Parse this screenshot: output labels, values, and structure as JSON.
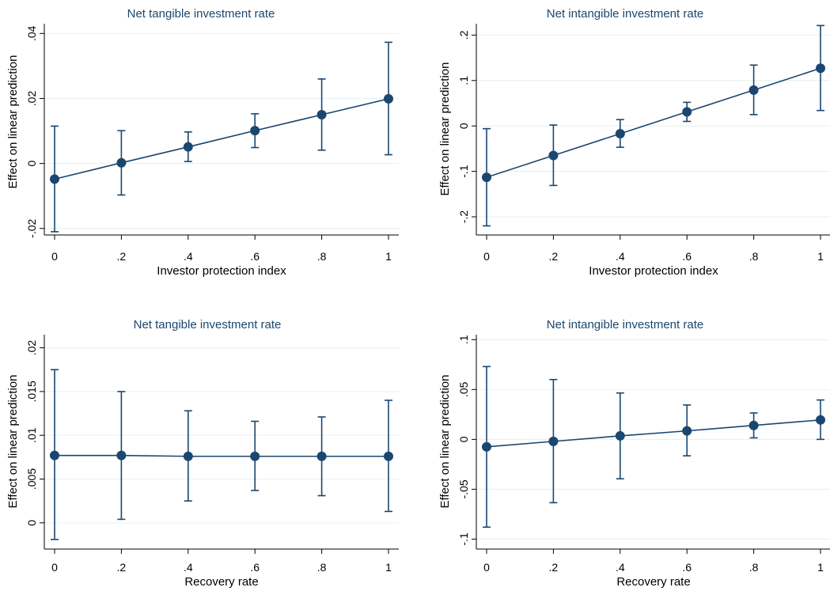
{
  "colors": {
    "series": "#1a476f",
    "grid": "#eaf2f3",
    "background": "#ffffff"
  },
  "chart_data": [
    {
      "type": "line",
      "title": "Net tangible investment rate",
      "xlabel": "Investor protection index",
      "ylabel": "Effect on linear prediction",
      "x": [
        0,
        0.2,
        0.4,
        0.6,
        0.8,
        1
      ],
      "x_tick_labels": [
        "0",
        ".2",
        ".4",
        ".6",
        ".8",
        "1"
      ],
      "y_ticks": [
        -0.02,
        0,
        0.02,
        0.04
      ],
      "y_tick_labels": [
        "-.02",
        "0",
        ".02",
        ".04"
      ],
      "xlim": [
        0,
        1
      ],
      "ylim": [
        -0.022,
        0.043
      ],
      "grid": true,
      "series": [
        {
          "values": [
            -0.0048,
            0.0002,
            0.0051,
            0.0101,
            0.015,
            0.0199
          ],
          "ci_low": [
            -0.021,
            -0.0097,
            0.0006,
            0.0049,
            0.0041,
            0.0027
          ],
          "ci_high": [
            0.0115,
            0.0101,
            0.0097,
            0.0153,
            0.026,
            0.0373
          ]
        }
      ]
    },
    {
      "type": "line",
      "title": "Net intangible investment rate",
      "xlabel": "Investor protection index",
      "ylabel": "Effect on linear prediction",
      "x": [
        0,
        0.2,
        0.4,
        0.6,
        0.8,
        1
      ],
      "x_tick_labels": [
        "0",
        ".2",
        ".4",
        ".6",
        ".8",
        "1"
      ],
      "y_ticks": [
        -0.2,
        -0.1,
        0,
        0.1,
        0.2
      ],
      "y_tick_labels": [
        "-.2",
        "-.1",
        "0",
        ".1",
        ".2"
      ],
      "xlim": [
        0,
        1
      ],
      "ylim": [
        -0.24,
        0.225
      ],
      "grid": true,
      "series": [
        {
          "values": [
            -0.113,
            -0.065,
            -0.017,
            0.031,
            0.079,
            0.127
          ],
          "ci_low": [
            -0.22,
            -0.131,
            -0.047,
            0.01,
            0.025,
            0.034
          ],
          "ci_high": [
            -0.006,
            0.002,
            0.014,
            0.052,
            0.134,
            0.221
          ]
        }
      ]
    },
    {
      "type": "line",
      "title": "Net tangible investment rate",
      "xlabel": "Recovery rate",
      "ylabel": "Effect on linear prediction",
      "x": [
        0,
        0.2,
        0.4,
        0.6,
        0.8,
        1
      ],
      "x_tick_labels": [
        "0",
        ".2",
        ".4",
        ".6",
        ".8",
        "1"
      ],
      "y_ticks": [
        0,
        0.005,
        0.01,
        0.015,
        0.02
      ],
      "y_tick_labels": [
        "0",
        ".005",
        ".01",
        ".015",
        ".02"
      ],
      "xlim": [
        0,
        1
      ],
      "ylim": [
        -0.003,
        0.0215
      ],
      "grid": true,
      "series": [
        {
          "values": [
            0.0077,
            0.0077,
            0.0076,
            0.0076,
            0.0076,
            0.0076
          ],
          "ci_low": [
            -0.0019,
            0.0004,
            0.0025,
            0.0037,
            0.0031,
            0.0013
          ],
          "ci_high": [
            0.0175,
            0.015,
            0.0128,
            0.0116,
            0.0121,
            0.014
          ]
        }
      ]
    },
    {
      "type": "line",
      "title": "Net intangible investment rate",
      "xlabel": "Recovery rate",
      "ylabel": "Effect on linear prediction",
      "x": [
        0,
        0.2,
        0.4,
        0.6,
        0.8,
        1
      ],
      "x_tick_labels": [
        "0",
        ".2",
        ".4",
        ".6",
        ".8",
        "1"
      ],
      "y_ticks": [
        -0.1,
        -0.05,
        0,
        0.05,
        0.1
      ],
      "y_tick_labels": [
        "-.1",
        "-.05",
        "0",
        ".05",
        ".1"
      ],
      "xlim": [
        0,
        1
      ],
      "ylim": [
        -0.11,
        0.105
      ],
      "grid": true,
      "series": [
        {
          "values": [
            -0.0075,
            -0.002,
            0.0035,
            0.0085,
            0.014,
            0.0195
          ],
          "ci_low": [
            -0.088,
            -0.0635,
            -0.0395,
            -0.0165,
            0.0015,
            0.0
          ],
          "ci_high": [
            0.073,
            0.06,
            0.0465,
            0.0345,
            0.0265,
            0.0395
          ]
        }
      ]
    }
  ]
}
